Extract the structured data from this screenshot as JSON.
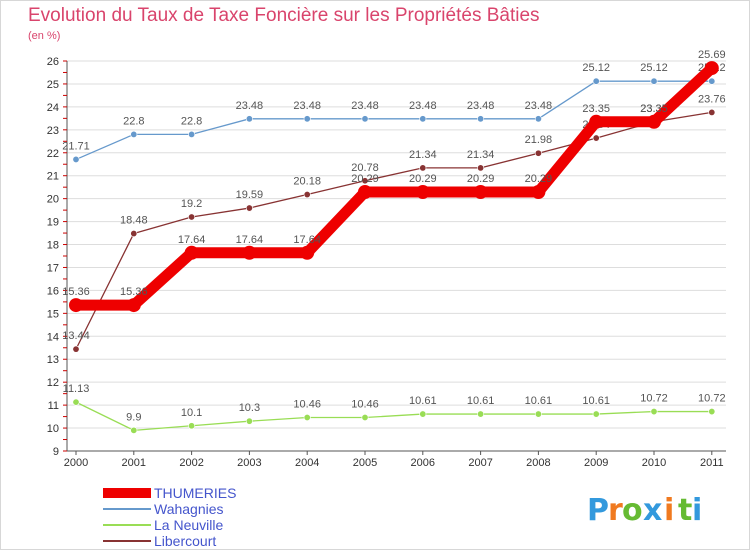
{
  "chart_data": {
    "type": "line",
    "title": "Evolution du Taux de Taxe Foncière sur les Propriétés Bâties",
    "subtitle": "(en %)",
    "xlabel": "",
    "ylabel": "(en %)",
    "x": [
      "2000",
      "2001",
      "2002",
      "2003",
      "2004",
      "2005",
      "2006",
      "2007",
      "2008",
      "2009",
      "2010",
      "2011"
    ],
    "ylim": [
      9,
      26
    ],
    "yticks": [
      "9",
      "10",
      "11",
      "12",
      "13",
      "14",
      "15",
      "16",
      "17",
      "18",
      "19",
      "20",
      "21",
      "22",
      "23",
      "24",
      "25",
      "26"
    ],
    "grid": "horizontal",
    "legend_position": "bottom-left",
    "series": [
      {
        "name": "THUMERIES",
        "color": "#ee0000",
        "style": "thick",
        "values": [
          15.36,
          15.36,
          17.64,
          17.64,
          17.64,
          20.29,
          20.29,
          20.29,
          20.29,
          23.35,
          23.35,
          25.69
        ],
        "labels": [
          "15.36",
          "15.36",
          "17.64",
          "17.64",
          "17.64",
          "20.29",
          "20.29",
          "20.29",
          "20.29",
          "23.35",
          "23.35",
          "25.69"
        ]
      },
      {
        "name": "Wahagnies",
        "color": "#6699cc",
        "style": "thin",
        "values": [
          21.71,
          22.8,
          22.8,
          23.48,
          23.48,
          23.48,
          23.48,
          23.48,
          23.48,
          25.12,
          25.12,
          25.12
        ],
        "labels": [
          "21.71",
          "22.8",
          "22.8",
          "23.48",
          "23.48",
          "23.48",
          "23.48",
          "23.48",
          "23.48",
          "25.12",
          "25.12",
          "25.12"
        ]
      },
      {
        "name": "La Neuville",
        "color": "#99dd55",
        "style": "thin",
        "values": [
          11.13,
          9.9,
          10.1,
          10.3,
          10.46,
          10.46,
          10.61,
          10.61,
          10.61,
          10.61,
          10.72,
          10.72
        ],
        "labels": [
          "11.13",
          "9.9",
          "10.1",
          "10.3",
          "10.46",
          "10.46",
          "10.61",
          "10.61",
          "10.61",
          "10.61",
          "10.72",
          "10.72"
        ]
      },
      {
        "name": "Libercourt",
        "color": "#883333",
        "style": "thin",
        "values": [
          13.44,
          18.48,
          19.2,
          19.59,
          20.18,
          20.78,
          21.34,
          21.34,
          21.98,
          22.64,
          23.35,
          23.76
        ],
        "labels": [
          "13.44",
          "18.48",
          "19.2",
          "19.59",
          "20.18",
          "20.78",
          "21.34",
          "21.34",
          "21.98",
          "22.64",
          "23.35",
          "23.76"
        ]
      }
    ]
  },
  "logo": {
    "text": "Proxiti",
    "letters": [
      "P",
      "r",
      "o",
      "x",
      "i",
      "t",
      "i"
    ],
    "colors": [
      "#3399dd",
      "#f07a20",
      "#66bb33",
      "#3399dd",
      "#f07a20",
      "#66bb33",
      "#3399dd"
    ]
  }
}
